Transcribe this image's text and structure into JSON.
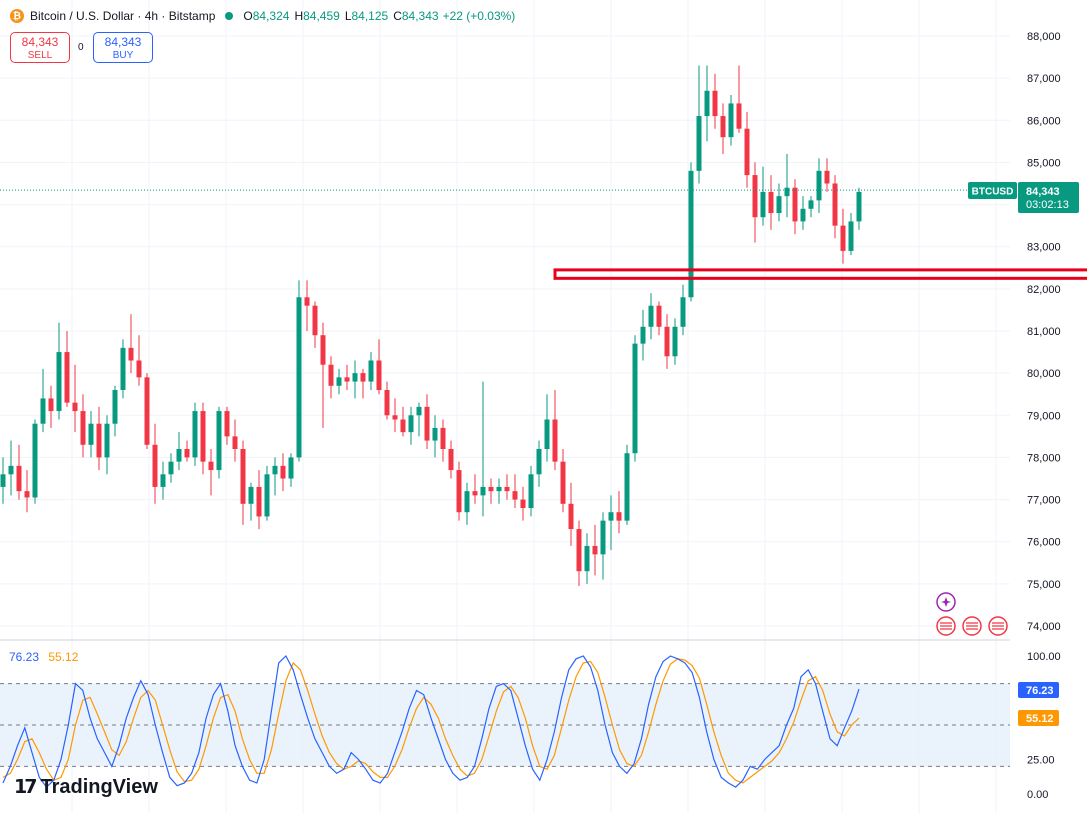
{
  "header": {
    "coin_icon": "bitcoin-icon",
    "title": "Bitcoin / U.S. Dollar · 4h · Bitstamp",
    "ohlc": [
      {
        "k": "O",
        "v": "84,324"
      },
      {
        "k": "H",
        "v": "84,459"
      },
      {
        "k": "L",
        "v": "84,125"
      },
      {
        "k": "C",
        "v": "84,343"
      }
    ],
    "change": "+22 (+0.03%)"
  },
  "trade": {
    "sell_price": "84,343",
    "sell_label": "SELL",
    "spread": "0",
    "buy_price": "84,343",
    "buy_label": "BUY"
  },
  "price_badge": {
    "symbol": "BTCUSD",
    "price": "84,343",
    "countdown": "03:02:13"
  },
  "rsi_legend": {
    "k": "76.23",
    "d": "55.12"
  },
  "brand": {
    "name": "TradingView"
  },
  "colors": {
    "up": "#089981",
    "down": "#f23645",
    "k_line": "#2962ff",
    "d_line": "#ff9800",
    "zone": "#e8001c"
  },
  "chart_data": {
    "type": "candlestick",
    "y_ticks": [
      "88,000",
      "87,000",
      "86,000",
      "85,000",
      "84,000",
      "83,000",
      "82,000",
      "81,000",
      "80,000",
      "79,000",
      "78,000",
      "77,000",
      "76,000",
      "75,000",
      "74,000"
    ],
    "ylim": [
      73800,
      88300
    ],
    "last_price": 84343,
    "resistance_zone": {
      "from": 82250,
      "to": 82450,
      "start_bar": 69,
      "end_bar": 244
    },
    "candles": [
      [
        77300,
        78000,
        76900,
        77600
      ],
      [
        77600,
        78400,
        77100,
        77800
      ],
      [
        77800,
        78300,
        77000,
        77200
      ],
      [
        77200,
        77700,
        76700,
        77050
      ],
      [
        77050,
        78900,
        76900,
        78800
      ],
      [
        78800,
        80100,
        78600,
        79400
      ],
      [
        79400,
        79700,
        78700,
        79100
      ],
      [
        79100,
        81200,
        78900,
        80500
      ],
      [
        80500,
        81000,
        79200,
        79300
      ],
      [
        79300,
        80200,
        78600,
        79100
      ],
      [
        79100,
        79500,
        78000,
        78300
      ],
      [
        78300,
        79100,
        78000,
        78800
      ],
      [
        78800,
        79200,
        77700,
        78000
      ],
      [
        78000,
        79000,
        77600,
        78800
      ],
      [
        78800,
        79700,
        78500,
        79600
      ],
      [
        79600,
        80800,
        79400,
        80600
      ],
      [
        80600,
        81400,
        80000,
        80300
      ],
      [
        80300,
        80900,
        79700,
        79900
      ],
      [
        79900,
        80000,
        78200,
        78300
      ],
      [
        78300,
        78800,
        76900,
        77300
      ],
      [
        77300,
        77900,
        77000,
        77600
      ],
      [
        77600,
        78100,
        77400,
        77900
      ],
      [
        77900,
        78600,
        77700,
        78200
      ],
      [
        78200,
        78400,
        77900,
        78000
      ],
      [
        78000,
        79300,
        77800,
        79100
      ],
      [
        79100,
        79300,
        77600,
        77900
      ],
      [
        77900,
        78200,
        77100,
        77700
      ],
      [
        77700,
        79200,
        77500,
        79100
      ],
      [
        79100,
        79200,
        78300,
        78500
      ],
      [
        78500,
        78900,
        77900,
        78200
      ],
      [
        78200,
        78400,
        76400,
        76900
      ],
      [
        76900,
        77400,
        76500,
        77300
      ],
      [
        77300,
        77700,
        76300,
        76600
      ],
      [
        76600,
        77800,
        76500,
        77600
      ],
      [
        77600,
        78000,
        77100,
        77800
      ],
      [
        77800,
        78100,
        77200,
        77500
      ],
      [
        77500,
        78100,
        77300,
        78000
      ],
      [
        78000,
        82200,
        77900,
        81800
      ],
      [
        81800,
        82200,
        81000,
        81600
      ],
      [
        81600,
        81700,
        80600,
        80900
      ],
      [
        80900,
        81200,
        78700,
        80200
      ],
      [
        80200,
        80400,
        79400,
        79700
      ],
      [
        79700,
        80100,
        79500,
        79900
      ],
      [
        79900,
        80200,
        79600,
        79800
      ],
      [
        79800,
        80300,
        79400,
        80000
      ],
      [
        80000,
        80100,
        79400,
        79800
      ],
      [
        79800,
        80500,
        79600,
        80300
      ],
      [
        80300,
        80800,
        79500,
        79600
      ],
      [
        79600,
        79800,
        78900,
        79000
      ],
      [
        79000,
        79400,
        78600,
        78900
      ],
      [
        78900,
        79200,
        78500,
        78600
      ],
      [
        78600,
        79200,
        78300,
        79000
      ],
      [
        79000,
        79300,
        78500,
        79200
      ],
      [
        79200,
        79500,
        78200,
        78400
      ],
      [
        78400,
        79000,
        78000,
        78700
      ],
      [
        78700,
        78900,
        77900,
        78200
      ],
      [
        78200,
        78400,
        77500,
        77700
      ],
      [
        77700,
        77900,
        76500,
        76700
      ],
      [
        76700,
        77400,
        76400,
        77200
      ],
      [
        77200,
        77600,
        76900,
        77100
      ],
      [
        77100,
        79800,
        76600,
        77300
      ],
      [
        77300,
        77500,
        76900,
        77200
      ],
      [
        77200,
        77500,
        76900,
        77300
      ],
      [
        77300,
        77600,
        77000,
        77200
      ],
      [
        77200,
        77600,
        76800,
        77000
      ],
      [
        77000,
        77300,
        76500,
        76800
      ],
      [
        76800,
        77800,
        76600,
        77600
      ],
      [
        77600,
        78400,
        77300,
        78200
      ],
      [
        78200,
        79500,
        77900,
        78900
      ],
      [
        78900,
        79600,
        77700,
        77900
      ],
      [
        77900,
        78200,
        76700,
        76900
      ],
      [
        76900,
        77400,
        75900,
        76300
      ],
      [
        76300,
        76500,
        74950,
        75300
      ],
      [
        75300,
        76200,
        75000,
        75900
      ],
      [
        75900,
        76400,
        75200,
        75700
      ],
      [
        75700,
        76700,
        75100,
        76500
      ],
      [
        76500,
        77100,
        75800,
        76700
      ],
      [
        76700,
        77200,
        76200,
        76500
      ],
      [
        76500,
        78300,
        76400,
        78100
      ],
      [
        78100,
        80900,
        77900,
        80700
      ],
      [
        80700,
        81500,
        80300,
        81100
      ],
      [
        81100,
        81900,
        80800,
        81600
      ],
      [
        81600,
        81700,
        80900,
        81100
      ],
      [
        81100,
        81400,
        80100,
        80400
      ],
      [
        80400,
        81300,
        80200,
        81100
      ],
      [
        81100,
        82100,
        80900,
        81800
      ],
      [
        81800,
        85000,
        81700,
        84800
      ],
      [
        84800,
        87300,
        84500,
        86100
      ],
      [
        86100,
        87300,
        85500,
        86700
      ],
      [
        86700,
        87100,
        85800,
        86100
      ],
      [
        86100,
        86400,
        85200,
        85600
      ],
      [
        85600,
        86600,
        85400,
        86400
      ],
      [
        86400,
        87300,
        85700,
        85800
      ],
      [
        85800,
        86200,
        84400,
        84700
      ],
      [
        84700,
        85000,
        83100,
        83700
      ],
      [
        83700,
        84900,
        83500,
        84300
      ],
      [
        84300,
        84700,
        83400,
        83800
      ],
      [
        83800,
        84500,
        83600,
        84200
      ],
      [
        84200,
        85200,
        83700,
        84400
      ],
      [
        84400,
        84600,
        83300,
        83600
      ],
      [
        83600,
        84200,
        83400,
        83900
      ],
      [
        83900,
        84200,
        83700,
        84100
      ],
      [
        84100,
        85100,
        83800,
        84800
      ],
      [
        84800,
        85100,
        84300,
        84500
      ],
      [
        84500,
        84700,
        83200,
        83500
      ],
      [
        83500,
        83900,
        82600,
        82900
      ],
      [
        82900,
        83800,
        82800,
        83600
      ],
      [
        83600,
        84400,
        83400,
        84300
      ]
    ],
    "stoch_rsi": {
      "levels": [
        100,
        80,
        50,
        20,
        0
      ],
      "tick_labels": [
        "100.00",
        "25.00",
        "0.00"
      ],
      "k": [
        8,
        20,
        35,
        48,
        30,
        12,
        5,
        10,
        25,
        50,
        80,
        75,
        55,
        40,
        30,
        20,
        35,
        55,
        70,
        82,
        72,
        50,
        30,
        12,
        6,
        8,
        15,
        30,
        55,
        72,
        80,
        60,
        35,
        20,
        10,
        8,
        25,
        60,
        95,
        100,
        90,
        72,
        55,
        40,
        30,
        20,
        15,
        18,
        30,
        25,
        18,
        10,
        8,
        15,
        30,
        45,
        62,
        75,
        72,
        55,
        40,
        25,
        15,
        10,
        12,
        20,
        40,
        62,
        78,
        80,
        75,
        55,
        35,
        18,
        10,
        25,
        45,
        70,
        90,
        98,
        100,
        92,
        75,
        50,
        30,
        20,
        15,
        22,
        40,
        65,
        85,
        96,
        100,
        98,
        95,
        88,
        70,
        45,
        25,
        12,
        8,
        5,
        10,
        20,
        18,
        25,
        30,
        35,
        50,
        62,
        85,
        90,
        80,
        60,
        40,
        35,
        48,
        60,
        76
      ],
      "d": [
        12,
        15,
        25,
        38,
        40,
        30,
        18,
        10,
        12,
        25,
        50,
        68,
        70,
        58,
        45,
        32,
        28,
        38,
        55,
        70,
        75,
        68,
        50,
        32,
        16,
        9,
        10,
        18,
        35,
        55,
        70,
        72,
        60,
        40,
        25,
        15,
        15,
        32,
        58,
        82,
        95,
        90,
        75,
        58,
        42,
        30,
        22,
        18,
        20,
        24,
        22,
        16,
        12,
        12,
        20,
        32,
        48,
        62,
        70,
        65,
        55,
        40,
        28,
        18,
        13,
        15,
        25,
        42,
        60,
        74,
        78,
        70,
        55,
        35,
        20,
        18,
        28,
        48,
        68,
        85,
        95,
        96,
        88,
        70,
        50,
        32,
        22,
        20,
        28,
        45,
        65,
        82,
        94,
        98,
        97,
        93,
        84,
        65,
        45,
        28,
        15,
        10,
        8,
        12,
        16,
        20,
        24,
        30,
        40,
        52,
        68,
        82,
        85,
        75,
        58,
        45,
        42,
        50,
        55
      ]
    }
  }
}
